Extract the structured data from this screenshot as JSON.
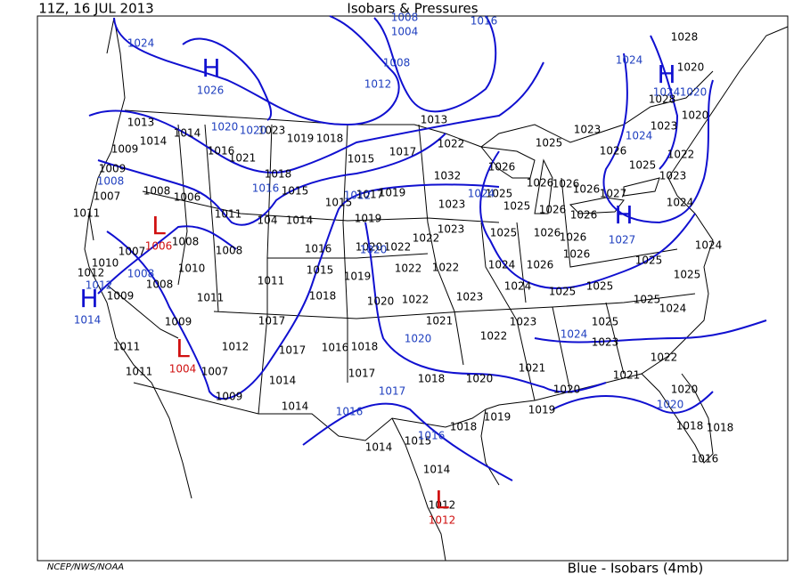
{
  "header": {
    "time": "11Z, 16 JUL 2013",
    "title": "Isobars & Pressures"
  },
  "footer": {
    "credit": "NCEP/NWS/NOAA",
    "legend": "Blue - Isobars (4mb)"
  },
  "station_pressures": [
    1023,
    1019,
    1018,
    1014,
    1014,
    1013,
    1009,
    1009,
    1007,
    1011,
    1016,
    1021,
    1018,
    1015,
    1015,
    1017,
    1013,
    1022,
    1032,
    1019,
    1017,
    1015,
    1014,
    104,
    1011,
    1008,
    1006,
    1019,
    1023,
    1025,
    1023,
    1022,
    1022,
    1020,
    1016,
    1015,
    1011,
    1008,
    1008,
    1010,
    1007,
    1010,
    1012,
    1009,
    1008,
    1011,
    1018,
    1019,
    1022,
    1022,
    1020,
    1022,
    1023,
    1021,
    1025,
    1024,
    1024,
    1025,
    1025,
    1025,
    1025,
    1025,
    1024,
    1023,
    1022,
    1025,
    1023,
    1024,
    1022,
    1021,
    1021,
    1020,
    1018,
    1017,
    1018,
    1016,
    1017,
    1012,
    1017,
    1009,
    1011,
    1011,
    1007,
    1009,
    1014,
    1014,
    1015,
    1014,
    1018,
    1019,
    1019,
    1020,
    1020,
    1018,
    1018,
    1016,
    1014,
    1012,
    1026,
    1025,
    1023,
    1026,
    1025,
    1022,
    1023,
    1024,
    1026,
    1026,
    1026,
    1027,
    1026,
    1026,
    1026,
    1026,
    1026,
    1026,
    1028,
    1023,
    1028,
    1020,
    1020,
    1025
  ],
  "isobar_labels": [
    1024,
    1008,
    1004,
    1016,
    1008,
    1012,
    1026,
    1020,
    1020,
    1016,
    1012,
    1020,
    1008,
    1012,
    1014,
    1008,
    1020,
    1017,
    1016,
    1016,
    1024,
    1024,
    1024,
    1024,
    1027,
    1024,
    1020,
    1020
  ],
  "pressure_centers": [
    {
      "symbol": "H"
    },
    {
      "symbol": "H"
    },
    {
      "symbol": "H"
    },
    {
      "symbol": "H"
    },
    {
      "symbol": "L",
      "pressure": 1006
    },
    {
      "symbol": "L",
      "pressure": 1004
    },
    {
      "symbol": "L",
      "pressure": 1012
    }
  ]
}
